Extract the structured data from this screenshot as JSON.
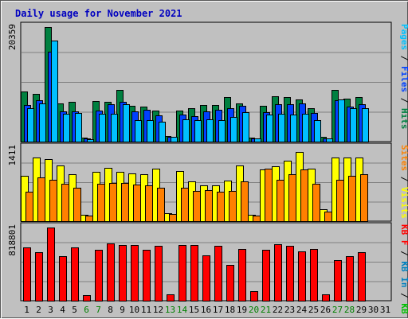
{
  "chart_data": {
    "type": "bar",
    "title": "Daily usage for November 2021",
    "categories": [
      "1",
      "2",
      "3",
      "4",
      "5",
      "6",
      "7",
      "8",
      "9",
      "10",
      "11",
      "12",
      "13",
      "14",
      "15",
      "16",
      "17",
      "18",
      "19",
      "20",
      "21",
      "22",
      "23",
      "24",
      "25",
      "26",
      "27",
      "28",
      "29",
      "30",
      "31"
    ],
    "weekend_days": [
      "6",
      "7",
      "13",
      "14",
      "20",
      "21",
      "27",
      "28"
    ],
    "colors": {
      "hits": "#008040",
      "files": "#0040ff",
      "pages": "#00c0ff",
      "visits": "#ffff00",
      "sites": "#ff8000",
      "kb_in": "#0080c0",
      "kb_out": "#00c000",
      "kb_f": "#ff0000",
      "weekday_label": "#000000",
      "weekend_label": "#008000",
      "title": "#0000c0"
    },
    "panels": [
      {
        "id": "hits-files-pages",
        "ymax_label": "20359",
        "ymax": 20359,
        "right_label": [
          {
            "text": "Pages",
            "color": "#00c0ff"
          },
          {
            "text": " / ",
            "color": "#000000"
          },
          {
            "text": "Files",
            "color": "#0040ff"
          },
          {
            "text": " / ",
            "color": "#000000"
          },
          {
            "text": "Hits",
            "color": "#008040"
          }
        ],
        "series": [
          {
            "name": "Hits",
            "color": "#008040",
            "values": [
              8900,
              8500,
              20359,
              6800,
              7000,
              700,
              7200,
              7100,
              9200,
              6300,
              6200,
              5500,
              1000,
              5500,
              5900,
              6500,
              6500,
              7900,
              6800,
              700,
              6300,
              8100,
              7900,
              7500,
              5900,
              800,
              9200,
              7700,
              7900
            ]
          },
          {
            "name": "Files",
            "color": "#0040ff",
            "values": [
              6500,
              7300,
              16000,
              5400,
              5400,
              500,
              5500,
              6700,
              7100,
              5400,
              5700,
              4600,
              900,
              4800,
              4500,
              5400,
              5600,
              6000,
              6400,
              600,
              5300,
              6600,
              6600,
              6800,
              5100,
              600,
              7300,
              6200,
              6600
            ]
          },
          {
            "name": "Pages",
            "color": "#00c0ff",
            "values": [
              6000,
              6800,
              18000,
              5000,
              5100,
              400,
              5000,
              5000,
              6600,
              3800,
              3800,
              3600,
              800,
              4000,
              3800,
              4000,
              3800,
              4400,
              5200,
              500,
              4800,
              5000,
              4800,
              4900,
              3800,
              500,
              7500,
              5900,
              5900
            ]
          }
        ]
      },
      {
        "id": "visits-sites",
        "ymax_label": "1411",
        "ymax": 1411,
        "right_label": [
          {
            "text": "Sites",
            "color": "#ff8000"
          },
          {
            "text": " / ",
            "color": "#000000"
          },
          {
            "text": "Visits",
            "color": "#ffff00"
          }
        ],
        "series": [
          {
            "name": "Visits",
            "color": "#ffff00",
            "values": [
              870,
              1230,
              1200,
              1080,
              900,
              130,
              950,
              1020,
              950,
              920,
              900,
              1010,
              160,
              960,
              770,
              690,
              690,
              780,
              1070,
              130,
              1000,
              1060,
              1170,
              1340,
              1010,
              230,
              1220,
              1230,
              1230
            ]
          },
          {
            "name": "Sites",
            "color": "#ff8000",
            "values": [
              570,
              840,
              790,
              720,
              640,
              110,
              720,
              730,
              740,
              710,
              690,
              640,
              140,
              640,
              580,
              600,
              560,
              580,
              760,
              110,
              1010,
              800,
              900,
              990,
              720,
              180,
              790,
              870,
              900
            ]
          }
        ]
      },
      {
        "id": "kbf-kbin-kbout",
        "ymax_label": "818801",
        "ymax": 818801,
        "right_label": [
          {
            "text": "KB F",
            "color": "#ff0000"
          },
          {
            "text": " / ",
            "color": "#000000"
          },
          {
            "text": "KB In",
            "color": "#0080c0"
          },
          {
            "text": " / ",
            "color": "#000000"
          },
          {
            "text": "KB Out",
            "color": "#00c000"
          }
        ],
        "series": [
          {
            "name": "KB F",
            "color": "#ff0000",
            "values": [
              600000,
              540000,
              818801,
              495000,
              600000,
              60000,
              570000,
              640000,
              625000,
              625000,
              570000,
              610000,
              75000,
              620000,
              620000,
              510000,
              610000,
              400000,
              580000,
              110000,
              570000,
              630000,
              610000,
              550000,
              575000,
              75000,
              450000,
              500000,
              545000
            ]
          }
        ]
      }
    ]
  }
}
